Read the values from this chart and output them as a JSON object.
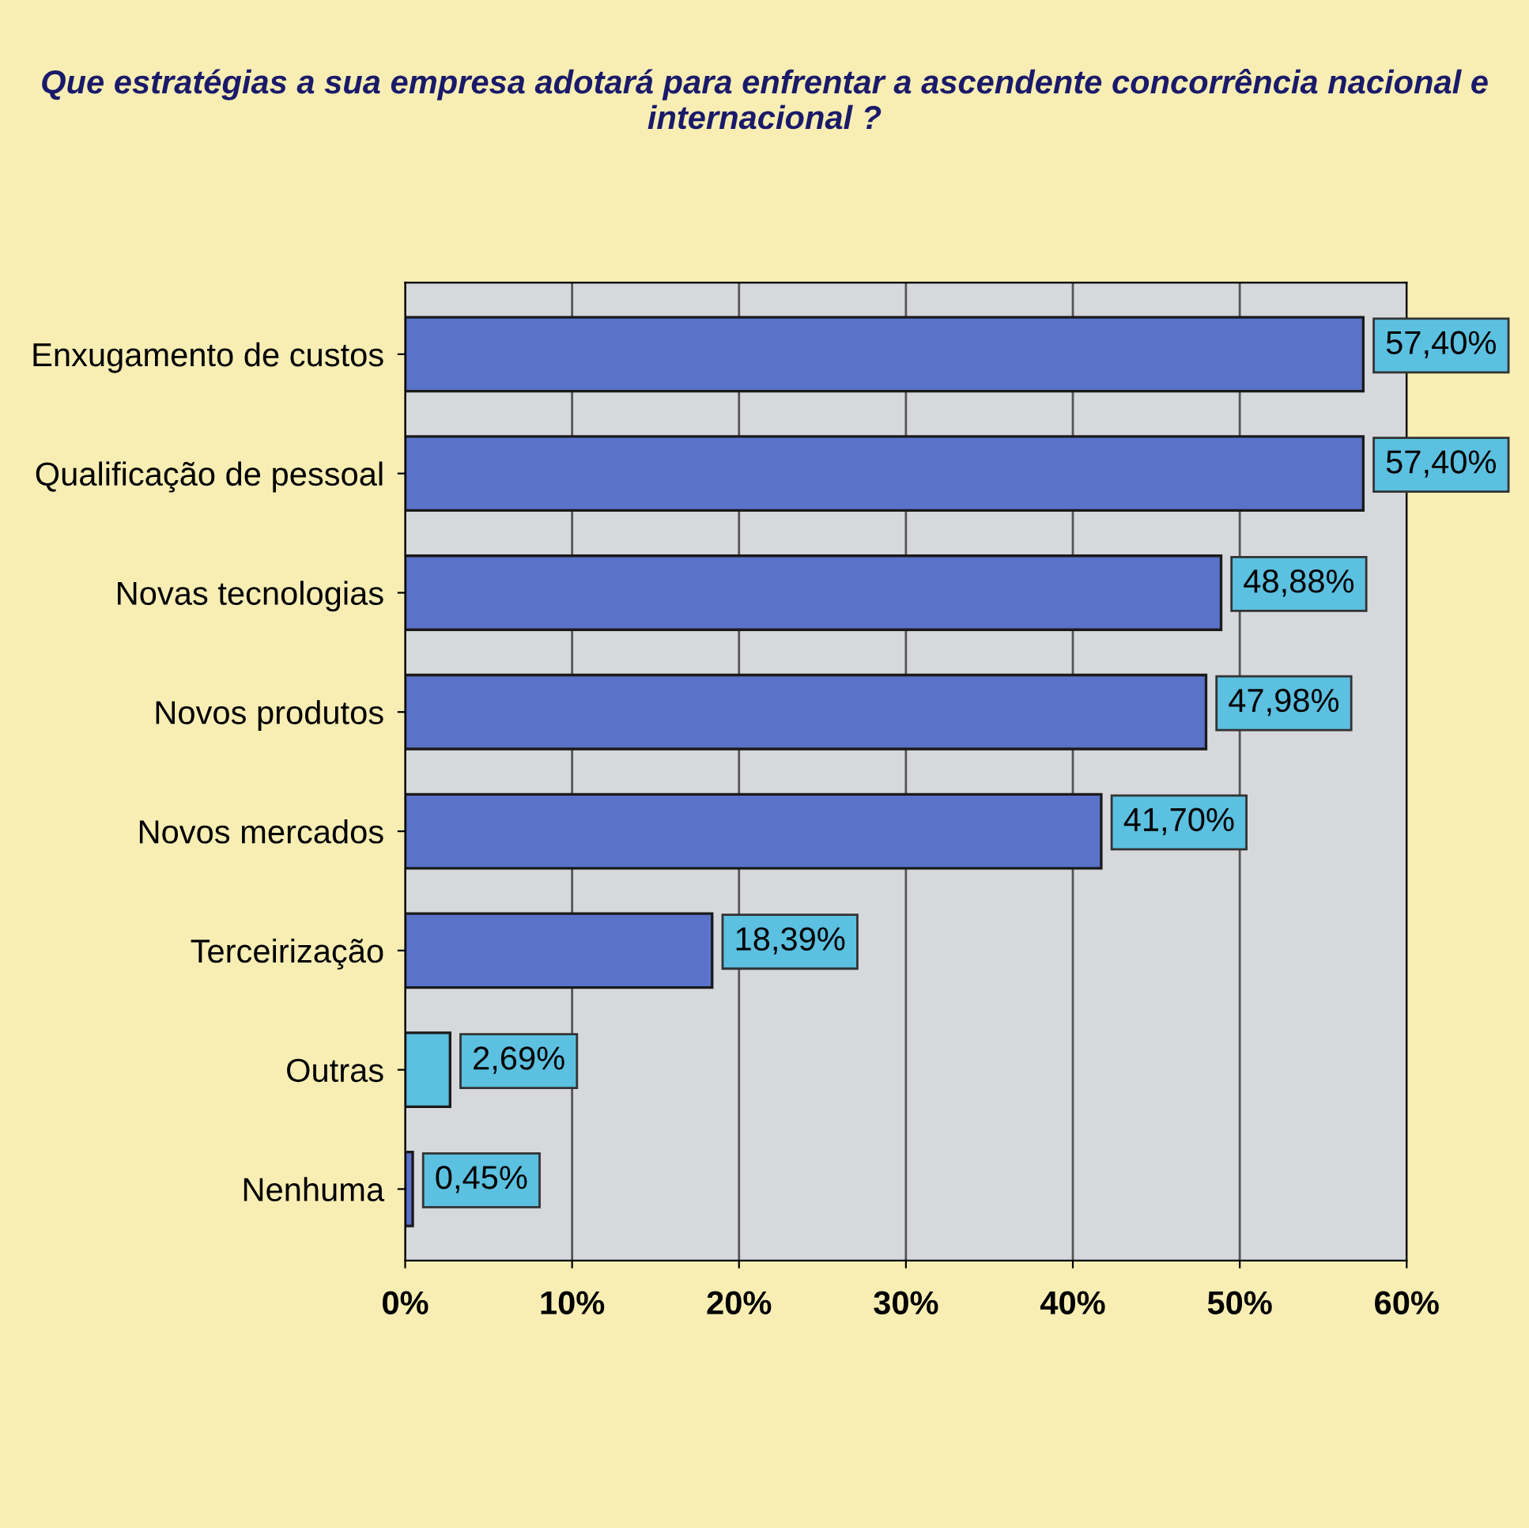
{
  "chart_data": {
    "type": "bar",
    "orientation": "horizontal",
    "title": "Que estratégias a sua empresa adotará para enfrentar a ascendente concorrência nacional e internacional ?",
    "categories": [
      "Enxugamento de custos",
      "Qualificação de pessoal",
      "Novas tecnologias",
      "Novos produtos",
      "Novos mercados",
      "Terceirização",
      "Outras",
      "Nenhuma"
    ],
    "values": [
      57.4,
      57.4,
      48.88,
      47.98,
      41.7,
      18.39,
      2.69,
      0.45
    ],
    "colors": [
      "#5a72c8",
      "#5a72c8",
      "#5a72c8",
      "#5a72c8",
      "#5a72c8",
      "#5a72c8",
      "#5cc0e0",
      "#5a72c8"
    ],
    "value_labels": [
      "57,40%",
      "57,40%",
      "48,88%",
      "47,98%",
      "41,70%",
      "18,39%",
      "2,69%",
      "0,45%"
    ],
    "xlim": [
      0,
      60
    ],
    "xticks": [
      {
        "value": 0,
        "label": "0%"
      },
      {
        "value": 10,
        "label": "10%"
      },
      {
        "value": 20,
        "label": "20%"
      },
      {
        "value": 30,
        "label": "30%"
      },
      {
        "value": 40,
        "label": "40%"
      },
      {
        "value": 50,
        "label": "50%"
      },
      {
        "value": 60,
        "label": "60%"
      }
    ],
    "grid": "x",
    "legend": false
  }
}
